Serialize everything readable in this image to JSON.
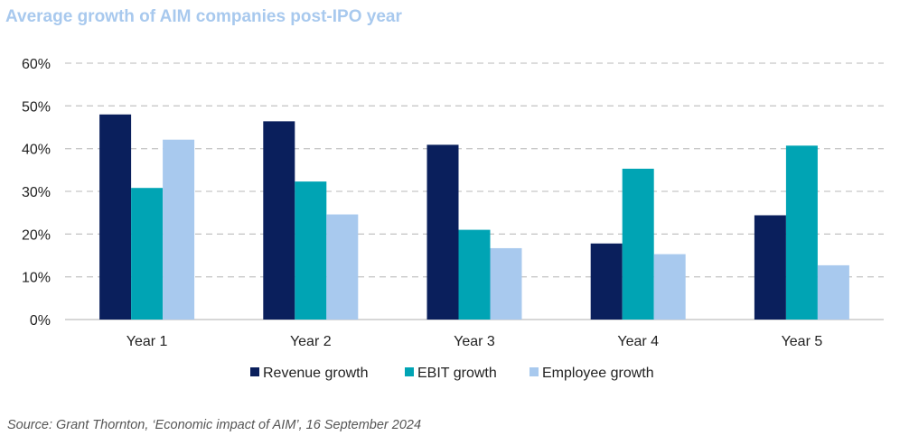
{
  "chart_data": {
    "type": "bar",
    "title": "Average growth of AIM companies post-IPO year",
    "categories": [
      "Year 1",
      "Year 2",
      "Year 3",
      "Year 4",
      "Year 5"
    ],
    "series": [
      {
        "name": "Revenue growth",
        "color": "#0a1f5c",
        "values": [
          48,
          46.4,
          40.9,
          17.8,
          24.4
        ]
      },
      {
        "name": "EBIT growth",
        "color": "#00a4b4",
        "values": [
          30.8,
          32.3,
          21,
          35.3,
          40.7
        ]
      },
      {
        "name": "Employee growth",
        "color": "#a8c9ee",
        "values": [
          42.1,
          24.6,
          16.7,
          15.3,
          12.7
        ]
      }
    ],
    "yticks": [
      "0%",
      "10%",
      "20%",
      "30%",
      "40%",
      "50%",
      "60%"
    ],
    "ylim": [
      0,
      60
    ],
    "grid": true,
    "legend": "bottom",
    "xlabel": "",
    "ylabel": ""
  },
  "source": "Source: Grant Thornton, ‘Economic impact of AIM’, 16 September 2024"
}
